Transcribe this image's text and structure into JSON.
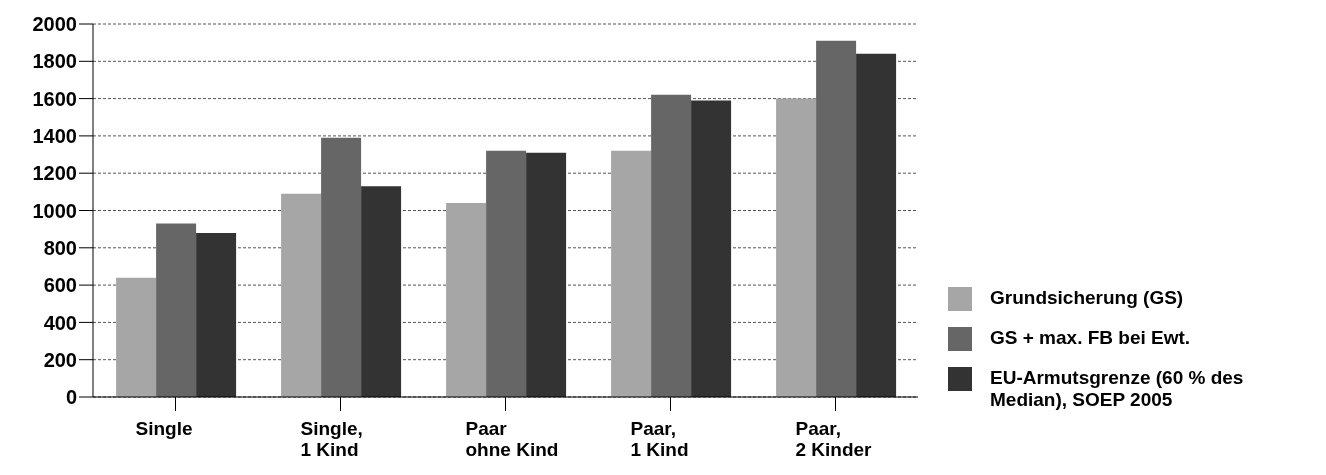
{
  "chart_data": {
    "type": "bar",
    "categories": [
      "Single",
      "Single,\n1 Kind",
      "Paar\nohne Kind",
      "Paar,\n1 Kind",
      "Paar,\n2 Kinder"
    ],
    "series": [
      {
        "name": "Grundsicherung (GS)",
        "color": "#a6a6a6",
        "values": [
          640,
          1090,
          1040,
          1320,
          1600
        ]
      },
      {
        "name": "GS + max. FB bei Ewt.",
        "color": "#666666",
        "values": [
          930,
          1390,
          1320,
          1620,
          1910
        ]
      },
      {
        "name": "EU-Armutsgrenze (60 % des Median), SOEP 2005",
        "color": "#333333",
        "values": [
          880,
          1130,
          1310,
          1590,
          1840
        ]
      }
    ],
    "ylim": [
      0,
      2000
    ],
    "yticks": [
      0,
      200,
      400,
      600,
      800,
      1000,
      1200,
      1400,
      1600,
      1800,
      2000
    ],
    "grid": "y",
    "legend": "right"
  }
}
